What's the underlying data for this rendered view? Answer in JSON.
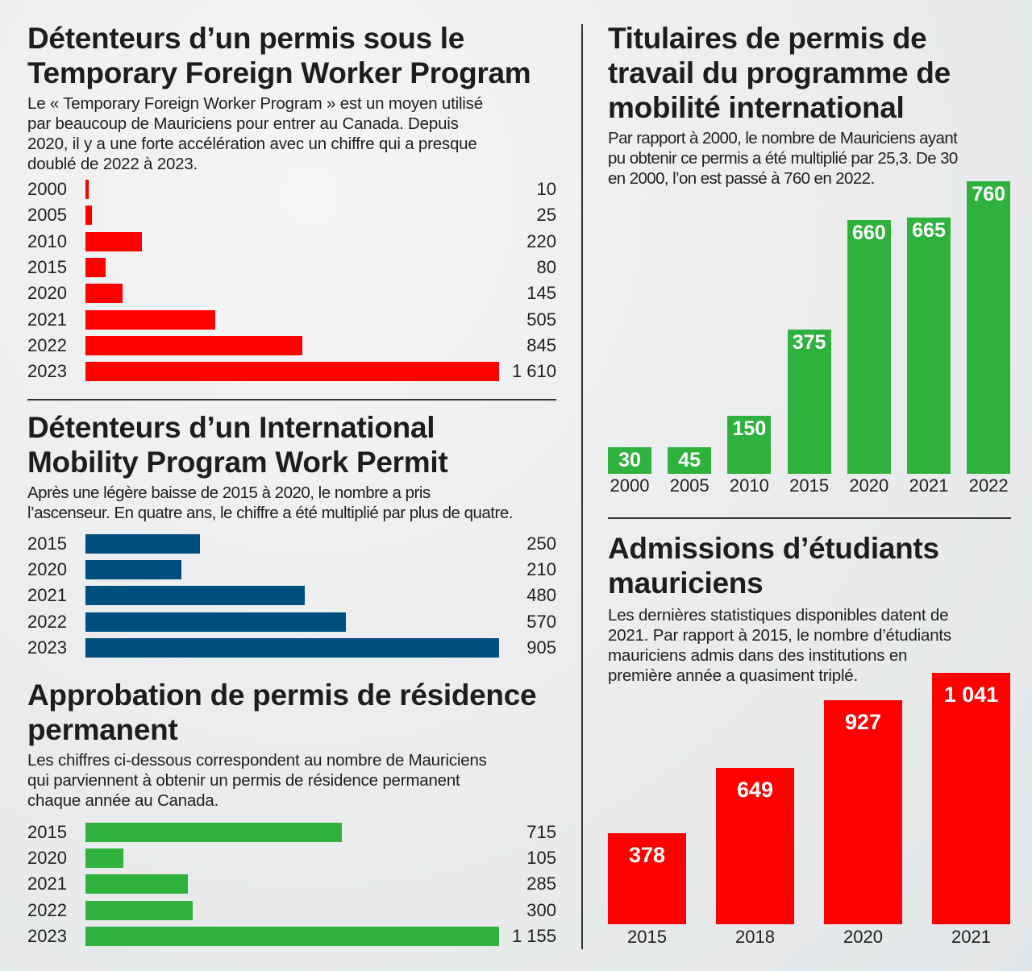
{
  "colors": {
    "red": "#ff0000",
    "blue": "#004f80",
    "green": "#2fb13d",
    "text": "#1d1d1d"
  },
  "panels": {
    "tfwp": {
      "title_line1": "Détenteurs d’un permis sous le",
      "title_line2": "Temporary Foreign Worker Program",
      "desc_line1": "Le « Temporary Foreign Worker Program » est un moyen utilisé",
      "desc_line2": "par beaucoup de Mauriciens pour entrer au Canada. Depuis",
      "desc_line3": "2020, il y a une forte accélération avec un chiffre qui a presque",
      "desc_line4": "doublé de 2022 à 2023."
    },
    "imp": {
      "title_line1": "Détenteurs d’un International",
      "title_line2": "Mobility Program Work Permit",
      "desc_line1": "Après une légère baisse de 2015 à 2020, le nombre a pris",
      "desc_line2": "l’ascenseur. En quatre ans, le chiffre a été multiplié par plus de quatre."
    },
    "pr": {
      "title_line1": "Approbation de permis de résidence",
      "title_line2": "permanent",
      "desc_line1": "Les chiffres ci-dessous correspondent au nombre de Mauriciens",
      "desc_line2": "qui parviennent à obtenir un permis de résidence permanent",
      "desc_line3": "chaque année au Canada."
    },
    "mobility": {
      "title_line1": "Titulaires de permis de",
      "title_line2": "travail du programme de",
      "title_line3": "mobilité international",
      "desc_line1": "Par rapport à 2000, le nombre de Mauriciens ayant",
      "desc_line2": "pu obtenir ce permis a été multiplié par 25,3. De 30",
      "desc_line3": "en 2000, l’on est passé à 760 en 2022."
    },
    "students": {
      "title_line1": "Admissions d’étudiants",
      "title_line2": "mauriciens",
      "desc_line1": "Les dernières statistiques disponibles datent de",
      "desc_line2": "2021. Par rapport à 2015, le nombre d’étudiants",
      "desc_line3": "mauriciens admis dans des institutions en",
      "desc_line4": "première année a quasiment triplé."
    }
  },
  "chart_data": [
    {
      "id": "tfwp",
      "type": "bar",
      "orientation": "horizontal",
      "title": "Détenteurs d’un permis sous le Temporary Foreign Worker Program",
      "categories": [
        "2000",
        "2005",
        "2010",
        "2015",
        "2020",
        "2021",
        "2022",
        "2023"
      ],
      "values": [
        10,
        25,
        220,
        80,
        145,
        505,
        845,
        1610
      ],
      "value_labels": [
        "10",
        "25",
        "220",
        "80",
        "145",
        "505",
        "845",
        "1 610"
      ],
      "xlim": [
        0,
        1610
      ],
      "color": "#ff0000"
    },
    {
      "id": "imp",
      "type": "bar",
      "orientation": "horizontal",
      "title": "Détenteurs d’un International Mobility Program Work Permit",
      "categories": [
        "2015",
        "2020",
        "2021",
        "2022",
        "2023"
      ],
      "values": [
        250,
        210,
        480,
        570,
        905
      ],
      "value_labels": [
        "250",
        "210",
        "480",
        "570",
        "905"
      ],
      "xlim": [
        0,
        905
      ],
      "color": "#004f80"
    },
    {
      "id": "pr",
      "type": "bar",
      "orientation": "horizontal",
      "title": "Approbation de permis de résidence permanent",
      "categories": [
        "2015",
        "2020",
        "2021",
        "2022",
        "2023"
      ],
      "values": [
        715,
        105,
        285,
        300,
        1155
      ],
      "value_labels": [
        "715",
        "105",
        "285",
        "300",
        "1 155"
      ],
      "xlim": [
        0,
        1155
      ],
      "color": "#2fb13d"
    },
    {
      "id": "mobility",
      "type": "bar",
      "orientation": "vertical",
      "title": "Titulaires de permis de travail du programme de mobilité international",
      "categories": [
        "2000",
        "2005",
        "2010",
        "2015",
        "2020",
        "2021",
        "2022"
      ],
      "values": [
        30,
        45,
        150,
        375,
        660,
        665,
        760
      ],
      "value_labels": [
        "30",
        "45",
        "150",
        "375",
        "660",
        "665",
        "760"
      ],
      "ylim": [
        0,
        760
      ],
      "color": "#2fb13d"
    },
    {
      "id": "students",
      "type": "bar",
      "orientation": "vertical",
      "title": "Admissions d’étudiants mauriciens",
      "categories": [
        "2015",
        "2018",
        "2020",
        "2021"
      ],
      "values": [
        378,
        649,
        927,
        1041
      ],
      "value_labels": [
        "378",
        "649",
        "927",
        "1 041"
      ],
      "ylim": [
        0,
        1041
      ],
      "color": "#ff0000"
    }
  ]
}
